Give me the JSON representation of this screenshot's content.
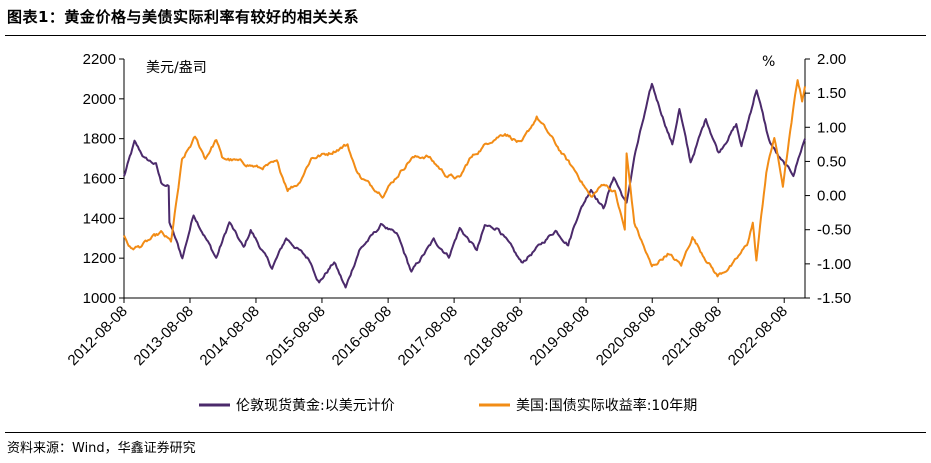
{
  "header": {
    "title": "图表1：黄金价格与美债实际利率有较好的相关关系"
  },
  "footer": {
    "source": "资料来源：Wind，华鑫证券研究"
  },
  "chart_data": {
    "type": "line",
    "title": "图表1：黄金价格与美债实际利率有较好的相关关系",
    "left_axis": {
      "unit": "美元/盎司",
      "range": [
        1000,
        2200
      ],
      "ticks": [
        "1000",
        "1200",
        "1400",
        "1600",
        "1800",
        "2000",
        "2200"
      ]
    },
    "right_axis": {
      "unit": "%",
      "range": [
        -1.5,
        2.0
      ],
      "ticks": [
        "-1.50",
        "-1.00",
        "-0.50",
        "0.00",
        "0.50",
        "1.00",
        "1.50",
        "2.00"
      ]
    },
    "x_ticks": [
      "2012-08-08",
      "2013-08-08",
      "2014-08-08",
      "2015-08-08",
      "2016-08-08",
      "2017-08-08",
      "2018-08-08",
      "2019-08-08",
      "2020-08-08",
      "2021-08-08",
      "2022-08-08"
    ],
    "grid": false,
    "legend_position": "bottom",
    "colors": {
      "gold": "#4b2a6b",
      "yield": "#f28c16"
    },
    "series": [
      {
        "name": "伦敦现货黄金:以美元计价",
        "axis": "left",
        "points": [
          [
            "2012-08-08",
            1610
          ],
          [
            "2012-10-05",
            1780
          ],
          [
            "2012-12-01",
            1700
          ],
          [
            "2013-02-01",
            1670
          ],
          [
            "2013-03-01",
            1580
          ],
          [
            "2013-04-12",
            1560
          ],
          [
            "2013-04-16",
            1380
          ],
          [
            "2013-06-27",
            1200
          ],
          [
            "2013-08-28",
            1420
          ],
          [
            "2013-12-31",
            1200
          ],
          [
            "2014-03-14",
            1380
          ],
          [
            "2014-06-01",
            1250
          ],
          [
            "2014-07-10",
            1340
          ],
          [
            "2014-11-05",
            1150
          ],
          [
            "2015-01-22",
            1300
          ],
          [
            "2015-06-01",
            1190
          ],
          [
            "2015-07-24",
            1080
          ],
          [
            "2015-10-15",
            1180
          ],
          [
            "2015-12-17",
            1050
          ],
          [
            "2016-03-01",
            1240
          ],
          [
            "2016-07-06",
            1370
          ],
          [
            "2016-10-01",
            1310
          ],
          [
            "2016-12-15",
            1130
          ],
          [
            "2017-04-17",
            1290
          ],
          [
            "2017-07-10",
            1210
          ],
          [
            "2017-09-08",
            1350
          ],
          [
            "2017-12-12",
            1240
          ],
          [
            "2018-01-25",
            1360
          ],
          [
            "2018-04-11",
            1350
          ],
          [
            "2018-08-16",
            1175
          ],
          [
            "2019-02-20",
            1340
          ],
          [
            "2019-05-01",
            1270
          ],
          [
            "2019-06-25",
            1420
          ],
          [
            "2019-09-04",
            1550
          ],
          [
            "2019-11-12",
            1450
          ],
          [
            "2020-01-08",
            1610
          ],
          [
            "2020-03-19",
            1470
          ],
          [
            "2020-05-01",
            1710
          ],
          [
            "2020-08-06",
            2070
          ],
          [
            "2020-11-27",
            1770
          ],
          [
            "2021-01-05",
            1950
          ],
          [
            "2021-03-08",
            1680
          ],
          [
            "2021-06-01",
            1900
          ],
          [
            "2021-08-10",
            1730
          ],
          [
            "2021-11-16",
            1870
          ],
          [
            "2021-12-15",
            1760
          ],
          [
            "2022-03-08",
            2050
          ],
          [
            "2022-05-16",
            1790
          ],
          [
            "2022-07-21",
            1690
          ],
          [
            "2022-09-28",
            1620
          ],
          [
            "2022-11-15",
            1760
          ],
          [
            "2022-12-01",
            1800
          ]
        ]
      },
      {
        "name": "美国:国债实际收益率:10年期",
        "axis": "right",
        "points": [
          [
            "2012-08-08",
            -0.58
          ],
          [
            "2012-09-15",
            -0.78
          ],
          [
            "2012-11-01",
            -0.75
          ],
          [
            "2013-01-15",
            -0.62
          ],
          [
            "2013-03-01",
            -0.55
          ],
          [
            "2013-04-25",
            -0.68
          ],
          [
            "2013-06-25",
            0.5
          ],
          [
            "2013-09-05",
            0.85
          ],
          [
            "2013-11-01",
            0.55
          ],
          [
            "2014-01-01",
            0.82
          ],
          [
            "2014-02-01",
            0.55
          ],
          [
            "2014-05-01",
            0.5
          ],
          [
            "2014-09-01",
            0.4
          ],
          [
            "2014-12-01",
            0.48
          ],
          [
            "2015-01-30",
            0.1
          ],
          [
            "2015-04-01",
            0.18
          ],
          [
            "2015-06-10",
            0.55
          ],
          [
            "2015-09-15",
            0.62
          ],
          [
            "2015-12-28",
            0.75
          ],
          [
            "2016-02-01",
            0.45
          ],
          [
            "2016-03-15",
            0.25
          ],
          [
            "2016-07-08",
            0.02
          ],
          [
            "2016-12-15",
            0.55
          ],
          [
            "2017-03-14",
            0.58
          ],
          [
            "2017-06-26",
            0.3
          ],
          [
            "2017-09-07",
            0.25
          ],
          [
            "2017-11-01",
            0.53
          ],
          [
            "2018-02-21",
            0.8
          ],
          [
            "2018-05-17",
            0.92
          ],
          [
            "2018-08-15",
            0.75
          ],
          [
            "2018-11-08",
            1.15
          ],
          [
            "2019-01-15",
            0.9
          ],
          [
            "2019-04-01",
            0.6
          ],
          [
            "2019-06-25",
            0.3
          ],
          [
            "2019-09-04",
            -0.03
          ],
          [
            "2019-11-15",
            0.18
          ],
          [
            "2020-01-15",
            0.05
          ],
          [
            "2020-03-09",
            -0.5
          ],
          [
            "2020-03-19",
            0.6
          ],
          [
            "2020-05-01",
            -0.4
          ],
          [
            "2020-08-06",
            -1.05
          ],
          [
            "2020-11-01",
            -0.85
          ],
          [
            "2021-01-15",
            -1.02
          ],
          [
            "2021-03-18",
            -0.6
          ],
          [
            "2021-05-01",
            -0.8
          ],
          [
            "2021-08-04",
            -1.18
          ],
          [
            "2021-11-01",
            -1.0
          ],
          [
            "2022-01-14",
            -0.72
          ],
          [
            "2022-02-15",
            -0.4
          ],
          [
            "2022-03-07",
            -0.95
          ],
          [
            "2022-05-01",
            0.35
          ],
          [
            "2022-06-14",
            0.85
          ],
          [
            "2022-08-01",
            0.15
          ],
          [
            "2022-10-21",
            1.7
          ],
          [
            "2022-11-15",
            1.4
          ],
          [
            "2022-12-01",
            1.6
          ]
        ]
      }
    ]
  }
}
